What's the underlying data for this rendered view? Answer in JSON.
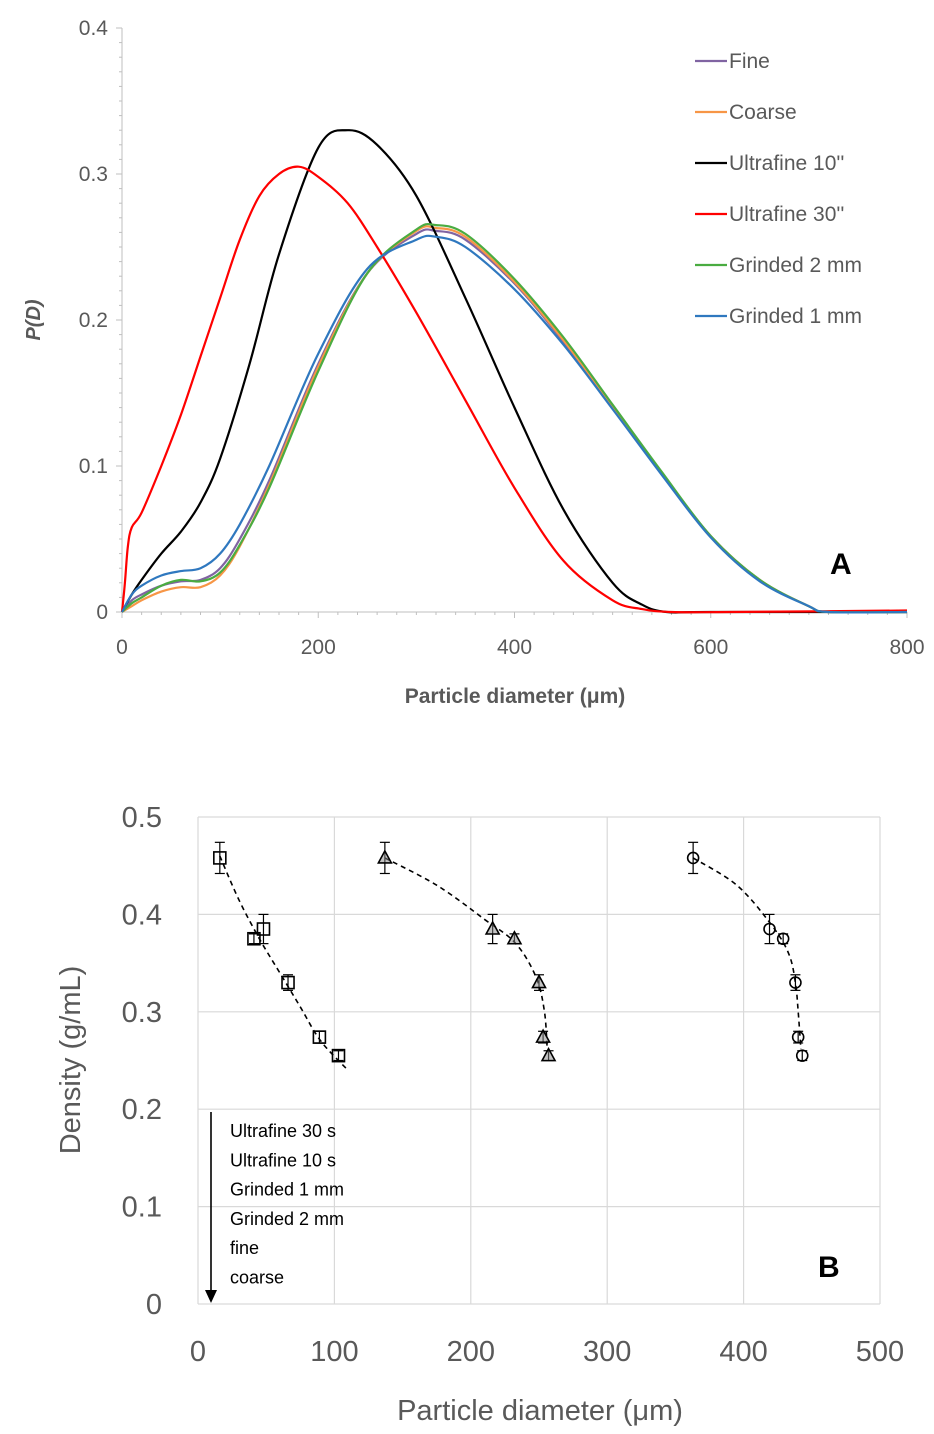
{
  "chart_data": [
    {
      "type": "line",
      "panel_label": "A",
      "xlabel": "Particle diameter (μm)",
      "ylabel": "P(D)",
      "xlim": [
        0,
        800
      ],
      "ylim": [
        0,
        0.4
      ],
      "xticks": [
        "0",
        "200",
        "400",
        "600",
        "800"
      ],
      "yticks": [
        "0",
        "0.1",
        "0.2",
        "0.3",
        "0.4"
      ],
      "grid": false,
      "legend_position": "top-right",
      "series": [
        {
          "name": "Fine",
          "color": "#8064a2",
          "x": [
            0,
            10,
            20,
            40,
            60,
            80,
            100,
            120,
            150,
            200,
            250,
            300,
            320,
            350,
            400,
            450,
            500,
            550,
            600,
            650,
            700,
            720,
            800
          ],
          "y": [
            0,
            0.008,
            0.012,
            0.018,
            0.021,
            0.022,
            0.03,
            0.05,
            0.09,
            0.17,
            0.232,
            0.259,
            0.261,
            0.255,
            0.225,
            0.185,
            0.14,
            0.095,
            0.052,
            0.022,
            0.004,
            0,
            0
          ]
        },
        {
          "name": "Coarse",
          "color": "#f79646",
          "x": [
            0,
            10,
            20,
            40,
            60,
            80,
            100,
            120,
            150,
            200,
            250,
            300,
            320,
            350,
            400,
            450,
            500,
            550,
            600,
            650,
            700,
            720,
            800
          ],
          "y": [
            0,
            0.004,
            0.008,
            0.014,
            0.017,
            0.017,
            0.025,
            0.045,
            0.087,
            0.168,
            0.232,
            0.261,
            0.263,
            0.257,
            0.226,
            0.186,
            0.141,
            0.095,
            0.052,
            0.022,
            0.004,
            0,
            0
          ]
        },
        {
          "name": "Ultrafine 10''",
          "color": "#000000",
          "x": [
            0,
            10,
            20,
            40,
            60,
            80,
            100,
            130,
            160,
            200,
            230,
            260,
            300,
            350,
            400,
            450,
            500,
            530,
            555,
            600,
            800
          ],
          "y": [
            0,
            0.012,
            0.022,
            0.04,
            0.055,
            0.075,
            0.105,
            0.17,
            0.245,
            0.318,
            0.33,
            0.32,
            0.285,
            0.215,
            0.14,
            0.07,
            0.02,
            0.005,
            0,
            0,
            0
          ]
        },
        {
          "name": "Ultrafine 30''",
          "color": "#ff0000",
          "x": [
            0,
            3,
            6,
            10,
            20,
            40,
            60,
            80,
            100,
            120,
            140,
            160,
            180,
            200,
            230,
            260,
            300,
            350,
            400,
            450,
            500,
            530,
            560,
            620,
            800
          ],
          "y": [
            0,
            0.02,
            0.045,
            0.058,
            0.068,
            0.1,
            0.135,
            0.175,
            0.215,
            0.255,
            0.285,
            0.3,
            0.305,
            0.298,
            0.28,
            0.25,
            0.205,
            0.145,
            0.085,
            0.035,
            0.008,
            0.002,
            0,
            0,
            0.001
          ]
        },
        {
          "name": "Grinded 2 mm",
          "color": "#4aac41",
          "x": [
            0,
            10,
            20,
            40,
            60,
            80,
            100,
            120,
            150,
            200,
            250,
            300,
            320,
            350,
            400,
            450,
            500,
            550,
            600,
            650,
            700,
            720,
            800
          ],
          "y": [
            0,
            0.006,
            0.01,
            0.018,
            0.022,
            0.021,
            0.027,
            0.046,
            0.085,
            0.165,
            0.232,
            0.262,
            0.265,
            0.259,
            0.228,
            0.188,
            0.142,
            0.096,
            0.052,
            0.022,
            0.004,
            0,
            0
          ]
        },
        {
          "name": "Grinded 1 mm",
          "color": "#2f78bf",
          "x": [
            0,
            10,
            20,
            40,
            60,
            80,
            100,
            120,
            150,
            200,
            250,
            300,
            320,
            350,
            400,
            450,
            500,
            550,
            600,
            650,
            700,
            720,
            800
          ],
          "y": [
            0,
            0.012,
            0.018,
            0.025,
            0.028,
            0.03,
            0.04,
            0.06,
            0.1,
            0.177,
            0.235,
            0.255,
            0.257,
            0.25,
            0.221,
            0.183,
            0.139,
            0.094,
            0.051,
            0.021,
            0.004,
            0,
            0
          ]
        }
      ]
    },
    {
      "type": "scatter",
      "panel_label": "B",
      "xlabel": "Particle diameter (μm)",
      "ylabel": "Density (g/mL)",
      "xlim": [
        0,
        500
      ],
      "ylim": [
        0,
        0.5
      ],
      "xticks": [
        "0",
        "100",
        "200",
        "300",
        "400",
        "500"
      ],
      "yticks": [
        "0",
        "0.1",
        "0.2",
        "0.3",
        "0.4",
        "0.5"
      ],
      "grid": true,
      "annotation": [
        "Ultrafine 30 s",
        "Ultrafine 10 s",
        "Grinded 1 mm",
        "Grinded 2 mm",
        "fine",
        "coarse"
      ],
      "series": [
        {
          "marker": "square",
          "x": [
            16,
            41,
            48,
            66,
            89,
            103
          ],
          "y": [
            0.458,
            0.375,
            0.385,
            0.33,
            0.274,
            0.255
          ],
          "yerr": [
            0.016,
            0.005,
            0.015,
            0.008,
            0.006,
            0.005
          ],
          "trend_x": [
            16,
            30,
            45,
            60,
            75,
            90,
            110
          ],
          "trend_y": [
            0.46,
            0.415,
            0.375,
            0.34,
            0.305,
            0.27,
            0.24
          ]
        },
        {
          "marker": "triangle",
          "x": [
            137,
            216,
            232,
            250,
            253,
            257
          ],
          "y": [
            0.458,
            0.385,
            0.375,
            0.33,
            0.274,
            0.255
          ],
          "yerr": [
            0.016,
            0.015,
            0.005,
            0.008,
            0.006,
            0.005
          ],
          "trend_x": [
            137,
            175,
            210,
            233,
            248,
            254,
            256
          ],
          "trend_y": [
            0.458,
            0.43,
            0.395,
            0.37,
            0.335,
            0.3,
            0.262
          ]
        },
        {
          "marker": "circle",
          "x": [
            363,
            419,
            429,
            438,
            440,
            443
          ],
          "y": [
            0.458,
            0.385,
            0.375,
            0.33,
            0.274,
            0.255
          ],
          "yerr": [
            0.016,
            0.015,
            0.005,
            0.008,
            0.006,
            0.005
          ],
          "trend_x": [
            363,
            395,
            420,
            433,
            438,
            440,
            442
          ],
          "trend_y": [
            0.458,
            0.43,
            0.39,
            0.36,
            0.33,
            0.3,
            0.262
          ]
        }
      ]
    }
  ]
}
